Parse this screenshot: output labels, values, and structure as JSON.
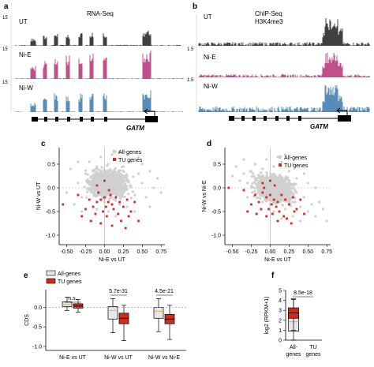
{
  "panel_a": {
    "letter": "a",
    "title": "RNA-Seq",
    "track_labels": [
      "UT",
      "Ni-E",
      "Ni-W"
    ],
    "scale_label": "15",
    "gene_label": "GATM"
  },
  "panel_b": {
    "letter": "b",
    "title_line1": "ChIP-Seq",
    "title_line2": "H3K4me3",
    "track_labels": [
      "UT",
      "Ni-E",
      "Ni-W"
    ],
    "scale_label": "1.5",
    "gene_label": "GATM"
  },
  "panel_c": {
    "letter": "c",
    "legend": [
      "All-genes",
      "TU genes"
    ]
  },
  "panel_d": {
    "letter": "d",
    "legend": [
      "All-genes",
      "TU genes"
    ]
  },
  "panel_e": {
    "letter": "e",
    "legend": [
      "All-genes",
      "TU genes"
    ],
    "pvalues": [
      "n.s.",
      "5.7e-31",
      "4.5e-21"
    ]
  },
  "panel_f": {
    "letter": "f",
    "pvalue": "8.5e-18"
  },
  "colors": {
    "ut": "#111111",
    "nie": "#b0246e",
    "niw": "#2e6fa6",
    "all_genes": "#d0d0d0",
    "tu_genes": "#d42a1e"
  },
  "chart_data": [
    {
      "type": "scatter",
      "panel": "c",
      "xlabel": "Ni-E vs UT",
      "ylabel": "Ni-W vs UT",
      "xlim": [
        -0.6,
        0.8
      ],
      "ylim": [
        -1.2,
        0.85
      ],
      "xticks": [
        "-0.50",
        "-0.25",
        "0.00",
        "0.25",
        "0.50",
        "0.75"
      ],
      "yticks": [
        "0.5",
        "0.0",
        "-0.5",
        "-1.0"
      ],
      "legend_position": "top-right",
      "series": [
        {
          "name": "All-genes",
          "points": [
            [
              0.0,
              0.1
            ],
            [
              0.05,
              0.2
            ],
            [
              -0.1,
              0.05
            ],
            [
              0.1,
              0.3
            ],
            [
              0.15,
              0.0
            ],
            [
              -0.05,
              -0.1
            ],
            [
              0.2,
              0.15
            ],
            [
              0.0,
              0.35
            ],
            [
              -0.15,
              0.2
            ],
            [
              0.25,
              -0.05
            ],
            [
              0.1,
              -0.2
            ],
            [
              -0.2,
              -0.05
            ],
            [
              0.3,
              0.25
            ],
            [
              0.05,
              0.5
            ],
            [
              -0.1,
              0.45
            ],
            [
              0.35,
              0.05
            ],
            [
              0.4,
              -0.15
            ],
            [
              -0.25,
              0.3
            ],
            [
              0.15,
              0.6
            ],
            [
              0.0,
              -0.3
            ],
            [
              0.2,
              -0.35
            ],
            [
              -0.3,
              -0.2
            ],
            [
              0.45,
              0.3
            ],
            [
              0.5,
              0.1
            ],
            [
              -0.35,
              0.1
            ],
            [
              0.1,
              0.7
            ],
            [
              0.3,
              -0.4
            ],
            [
              -0.4,
              -0.35
            ],
            [
              0.55,
              -0.2
            ],
            [
              0.25,
              0.45
            ],
            [
              -0.05,
              0.65
            ],
            [
              0.6,
              0.35
            ],
            [
              0.35,
              0.55
            ],
            [
              -0.2,
              0.55
            ],
            [
              0.65,
              0.0
            ],
            [
              0.4,
              -0.5
            ],
            [
              -0.45,
              0.4
            ],
            [
              0.05,
              -0.5
            ],
            [
              0.7,
              0.2
            ],
            [
              0.2,
              0.75
            ],
            [
              -0.5,
              -0.1
            ],
            [
              0.5,
              0.5
            ],
            [
              -0.3,
              -0.5
            ],
            [
              0.15,
              -0.6
            ],
            [
              0.75,
              -0.1
            ],
            [
              0.6,
              -0.4
            ],
            [
              -0.35,
              0.55
            ],
            [
              0.45,
              0.65
            ],
            [
              0.3,
              0.7
            ],
            [
              -0.1,
              -0.45
            ]
          ]
        },
        {
          "name": "TU genes",
          "points": [
            [
              0.0,
              -0.2
            ],
            [
              0.05,
              -0.3
            ],
            [
              -0.05,
              -0.25
            ],
            [
              0.1,
              -0.35
            ],
            [
              -0.1,
              -0.3
            ],
            [
              0.02,
              -0.4
            ],
            [
              0.15,
              -0.2
            ],
            [
              -0.15,
              -0.4
            ],
            [
              0.08,
              -0.15
            ],
            [
              -0.02,
              -0.5
            ],
            [
              0.2,
              -0.3
            ],
            [
              -0.2,
              -0.25
            ],
            [
              0.12,
              -0.45
            ],
            [
              -0.08,
              -0.1
            ],
            [
              0.25,
              -0.4
            ],
            [
              0.03,
              -0.6
            ],
            [
              -0.12,
              -0.55
            ],
            [
              0.18,
              -0.55
            ],
            [
              0.3,
              -0.25
            ],
            [
              -0.25,
              -0.45
            ],
            [
              0.06,
              -0.05
            ],
            [
              -0.3,
              -0.6
            ],
            [
              0.22,
              -0.7
            ],
            [
              0.35,
              -0.5
            ],
            [
              -0.05,
              -0.75
            ],
            [
              0.1,
              -0.8
            ],
            [
              -0.18,
              -0.7
            ],
            [
              0.4,
              -0.3
            ],
            [
              0.28,
              -0.85
            ],
            [
              -0.1,
              0.05
            ],
            [
              0.45,
              -0.7
            ],
            [
              -0.55,
              -0.35
            ],
            [
              0.0,
              0.15
            ],
            [
              0.32,
              -0.6
            ],
            [
              -0.35,
              -0.15
            ]
          ]
        }
      ]
    },
    {
      "type": "scatter",
      "panel": "d",
      "xlabel": "Ni-E vs UT",
      "ylabel": "Ni-W vs Ni-E",
      "xlim": [
        -0.6,
        0.8
      ],
      "ylim": [
        -1.2,
        0.85
      ],
      "xticks": [
        "-0.50",
        "-0.25",
        "0.00",
        "0.25",
        "0.50",
        "0.75"
      ],
      "yticks": [
        "0.5",
        "0.0",
        "-0.5",
        "-1.0"
      ],
      "legend_position": "top-right",
      "series": [
        {
          "name": "All-genes",
          "points": [
            [
              0.0,
              0.0
            ],
            [
              0.05,
              0.1
            ],
            [
              -0.1,
              0.15
            ],
            [
              0.1,
              -0.1
            ],
            [
              0.15,
              0.2
            ],
            [
              -0.05,
              -0.15
            ],
            [
              0.2,
              -0.2
            ],
            [
              0.0,
              0.3
            ],
            [
              -0.15,
              0.0
            ],
            [
              0.25,
              0.05
            ],
            [
              0.1,
              -0.3
            ],
            [
              -0.2,
              0.2
            ],
            [
              0.3,
              -0.3
            ],
            [
              0.05,
              0.45
            ],
            [
              -0.1,
              0.4
            ],
            [
              0.35,
              -0.1
            ],
            [
              0.4,
              -0.4
            ],
            [
              -0.25,
              0.35
            ],
            [
              0.15,
              0.55
            ],
            [
              0.0,
              -0.35
            ],
            [
              0.2,
              -0.45
            ],
            [
              -0.3,
              0.1
            ],
            [
              0.45,
              -0.2
            ],
            [
              0.5,
              -0.5
            ],
            [
              -0.35,
              0.3
            ],
            [
              0.1,
              0.65
            ],
            [
              0.3,
              -0.6
            ],
            [
              -0.4,
              0.15
            ],
            [
              0.55,
              -0.35
            ],
            [
              0.25,
              0.35
            ],
            [
              -0.05,
              0.6
            ],
            [
              0.6,
              -0.6
            ],
            [
              0.35,
              0.2
            ],
            [
              -0.2,
              0.5
            ],
            [
              0.65,
              -0.3
            ],
            [
              0.4,
              -0.7
            ],
            [
              -0.45,
              0.45
            ],
            [
              0.05,
              -0.5
            ],
            [
              0.7,
              -0.45
            ],
            [
              0.2,
              0.7
            ],
            [
              -0.5,
              0.25
            ],
            [
              0.5,
              0.1
            ],
            [
              -0.3,
              -0.2
            ],
            [
              0.15,
              -0.65
            ],
            [
              0.75,
              -0.7
            ],
            [
              0.6,
              0.0
            ],
            [
              -0.35,
              0.6
            ],
            [
              0.45,
              0.3
            ],
            [
              0.3,
              0.5
            ],
            [
              -0.1,
              -0.3
            ]
          ]
        },
        {
          "name": "TU genes",
          "points": [
            [
              0.0,
              -0.15
            ],
            [
              0.05,
              -0.25
            ],
            [
              -0.05,
              -0.2
            ],
            [
              0.1,
              -0.3
            ],
            [
              -0.1,
              -0.1
            ],
            [
              0.02,
              -0.35
            ],
            [
              0.15,
              -0.15
            ],
            [
              -0.15,
              -0.3
            ],
            [
              0.08,
              -0.4
            ],
            [
              -0.02,
              -0.45
            ],
            [
              0.2,
              -0.25
            ],
            [
              -0.2,
              -0.15
            ],
            [
              0.12,
              -0.5
            ],
            [
              -0.08,
              0.0
            ],
            [
              0.25,
              -0.35
            ],
            [
              0.03,
              -0.55
            ],
            [
              -0.12,
              -0.45
            ],
            [
              0.18,
              -0.6
            ],
            [
              0.3,
              -0.2
            ],
            [
              -0.25,
              -0.35
            ],
            [
              0.06,
              0.05
            ],
            [
              -0.3,
              -0.5
            ],
            [
              0.22,
              -0.65
            ],
            [
              0.35,
              -0.45
            ],
            [
              -0.05,
              -0.6
            ],
            [
              0.1,
              -0.7
            ],
            [
              -0.18,
              -0.55
            ],
            [
              0.4,
              -0.25
            ],
            [
              0.28,
              -0.75
            ],
            [
              -0.1,
              0.1
            ],
            [
              0.45,
              -0.55
            ],
            [
              -0.55,
              0.0
            ],
            [
              0.0,
              0.15
            ],
            [
              0.32,
              -0.5
            ],
            [
              -0.35,
              -0.05
            ]
          ]
        }
      ]
    },
    {
      "type": "box",
      "panel": "e",
      "ylabel": "CDS",
      "ylim": [
        -1.1,
        0.45
      ],
      "yticks": [
        "0.0",
        "-0.5",
        "-1.0"
      ],
      "categories": [
        "Ni-E vs UT",
        "Ni-W vs UT",
        "Ni-W vs Ni-E"
      ],
      "legend_position": "top-left",
      "series": [
        {
          "name": "All-genes",
          "boxes": [
            {
              "whisker_low": -0.08,
              "q1": 0.02,
              "median": 0.07,
              "q3": 0.14,
              "whisker_high": 0.26
            },
            {
              "whisker_low": -0.65,
              "q1": -0.3,
              "median": -0.08,
              "q3": 0.02,
              "whisker_high": 0.22
            },
            {
              "whisker_low": -0.62,
              "q1": -0.28,
              "median": -0.1,
              "q3": 0.0,
              "whisker_high": 0.22
            }
          ]
        },
        {
          "name": "TU genes",
          "boxes": [
            {
              "whisker_low": -0.12,
              "q1": -0.02,
              "median": 0.03,
              "q3": 0.09,
              "whisker_high": 0.2
            },
            {
              "whisker_low": -0.85,
              "q1": -0.42,
              "median": -0.28,
              "q3": -0.15,
              "whisker_high": 0.05
            },
            {
              "whisker_low": -0.82,
              "q1": -0.42,
              "median": -0.3,
              "q3": -0.18,
              "whisker_high": 0.05
            }
          ]
        }
      ]
    },
    {
      "type": "box",
      "panel": "f",
      "ylabel": "log2 (RPKM+1)",
      "ylim": [
        0,
        5
      ],
      "yticks": [
        "5",
        "4",
        "3",
        "2",
        "1",
        "0"
      ],
      "categories": [
        "All-\ngenes",
        "TU\ngenes"
      ],
      "series": [
        {
          "name": "All-genes",
          "boxes": [
            {
              "whisker_low": 0.0,
              "q1": 0.9,
              "median": 1.85,
              "q3": 2.75,
              "whisker_high": 4.1
            }
          ]
        },
        {
          "name": "TU genes",
          "boxes": [
            {
              "whisker_low": 1.0,
              "q1": 2.2,
              "median": 2.75,
              "q3": 3.25,
              "whisker_high": 4.15
            }
          ]
        }
      ]
    }
  ]
}
